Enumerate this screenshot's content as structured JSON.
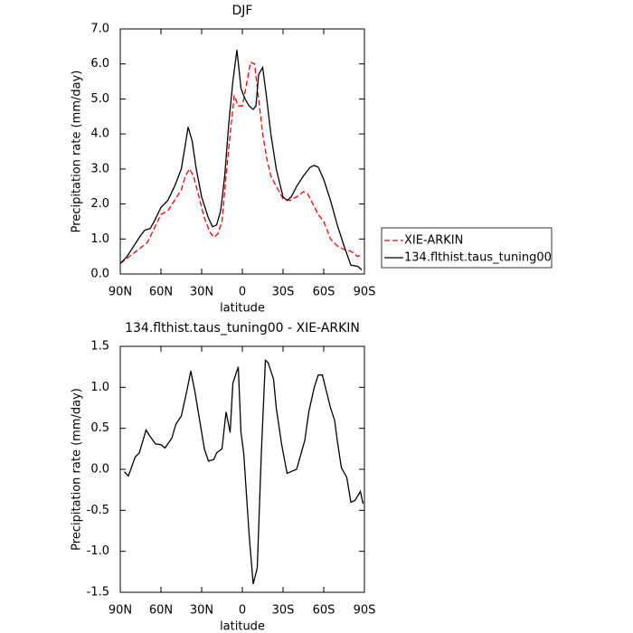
{
  "chart_data": [
    {
      "type": "line",
      "title": "DJF",
      "xlabel": "latitude",
      "ylabel": "Precipitation rate (mm/day)",
      "xlim": [
        90,
        -90
      ],
      "xticks": [
        {
          "value": 90,
          "label": "90N"
        },
        {
          "value": 60,
          "label": "60N"
        },
        {
          "value": 30,
          "label": "30N"
        },
        0,
        {
          "value": -30,
          "label": "30S"
        },
        {
          "value": -60,
          "label": "60S"
        },
        {
          "value": -90,
          "label": "90S"
        }
      ],
      "ylim": [
        0,
        7
      ],
      "yticks": [
        {
          "value": 0,
          "label": "0.0"
        },
        {
          "value": 1,
          "label": "1.0"
        },
        {
          "value": 2,
          "label": "2.0"
        },
        {
          "value": 3,
          "label": "3.0"
        },
        {
          "value": 4,
          "label": "4.0"
        },
        {
          "value": 5,
          "label": "5.0"
        },
        {
          "value": 6,
          "label": "6.0"
        },
        {
          "value": 7,
          "label": "7.0"
        }
      ],
      "legend": "right",
      "series": [
        {
          "name": "XIE-ARKIN",
          "color": "#ff0000",
          "linestyle": "dashed",
          "x": [
            90,
            85,
            80,
            75,
            70,
            65,
            60,
            55,
            50,
            45,
            42,
            39,
            36,
            32,
            28,
            24,
            21,
            18,
            15,
            12,
            9,
            6,
            3,
            0,
            -3,
            -6,
            -9,
            -12,
            -15,
            -18,
            -21,
            -25,
            -30,
            -35,
            -40,
            -45,
            -48,
            -52,
            -56,
            -60,
            -65,
            -70,
            -75,
            -80,
            -85,
            -88
          ],
          "values": [
            0.3,
            0.45,
            0.6,
            0.75,
            0.9,
            1.3,
            1.7,
            1.8,
            2.1,
            2.4,
            2.8,
            3.0,
            2.8,
            2.2,
            1.6,
            1.2,
            1.05,
            1.15,
            1.5,
            2.8,
            4.0,
            5.1,
            4.8,
            4.8,
            5.4,
            6.05,
            6.0,
            5.0,
            4.0,
            3.3,
            2.8,
            2.5,
            2.15,
            2.1,
            2.2,
            2.35,
            2.3,
            2.0,
            1.7,
            1.5,
            1.0,
            0.8,
            0.7,
            0.65,
            0.5,
            0.55
          ]
        },
        {
          "name": "134.flthist.taus_tuning00",
          "color": "#000000",
          "linestyle": "solid",
          "x": [
            90,
            85,
            80,
            75,
            72,
            68,
            65,
            60,
            55,
            50,
            45,
            42,
            40,
            37,
            34,
            30,
            25,
            22,
            19,
            16,
            13,
            10,
            7,
            4,
            1,
            -2,
            -5,
            -8,
            -10,
            -12,
            -15,
            -18,
            -21,
            -25,
            -30,
            -33,
            -36,
            -40,
            -45,
            -50,
            -53,
            -56,
            -60,
            -65,
            -70,
            -75,
            -80,
            -85,
            -88
          ],
          "values": [
            0.3,
            0.5,
            0.8,
            1.1,
            1.25,
            1.3,
            1.5,
            1.9,
            2.1,
            2.5,
            3.0,
            3.7,
            4.2,
            3.8,
            3.0,
            2.2,
            1.6,
            1.35,
            1.4,
            1.8,
            2.8,
            4.3,
            5.5,
            6.4,
            5.3,
            5.0,
            4.8,
            4.7,
            4.8,
            5.7,
            5.9,
            5.0,
            4.0,
            3.0,
            2.2,
            2.1,
            2.2,
            2.5,
            2.8,
            3.05,
            3.1,
            3.05,
            2.7,
            2.1,
            1.4,
            0.8,
            0.25,
            0.22,
            0.12
          ]
        }
      ]
    },
    {
      "type": "line",
      "title": "134.flthist.taus_tuning00 - XIE-ARKIN",
      "xlabel": "latitude",
      "ylabel": "Precipitation rate (mm/day)",
      "xlim": [
        90,
        -90
      ],
      "xticks": [
        {
          "value": 90,
          "label": "90N"
        },
        {
          "value": 60,
          "label": "60N"
        },
        {
          "value": 30,
          "label": "30N"
        },
        0,
        {
          "value": -30,
          "label": "30S"
        },
        {
          "value": -60,
          "label": "60S"
        },
        {
          "value": -90,
          "label": "90S"
        }
      ],
      "ylim": [
        -1.5,
        1.5
      ],
      "yticks": [
        -1.5,
        {
          "value": -1,
          "label": "-1.0"
        },
        -0.5,
        {
          "value": 0,
          "label": "0.0"
        },
        0.5,
        {
          "value": 1,
          "label": "1.0"
        },
        1.5
      ],
      "series": [
        {
          "color": "#000000",
          "linestyle": "solid",
          "x": [
            87,
            84,
            79,
            76,
            71,
            68,
            64,
            60,
            57,
            52,
            49,
            45,
            41,
            38,
            35,
            31,
            28,
            25,
            21,
            19,
            15,
            12,
            9,
            7,
            3,
            1,
            -1,
            -5,
            -8,
            -11,
            -14,
            -17,
            -19,
            -23,
            -25,
            -29,
            -33,
            -37,
            -40,
            -46,
            -49,
            -53,
            -56,
            -59,
            -62,
            -65,
            -68,
            -70,
            -73,
            -77,
            -80,
            -83,
            -87,
            -89
          ],
          "values": [
            -0.03,
            -0.08,
            0.15,
            0.2,
            0.48,
            0.4,
            0.31,
            0.3,
            0.26,
            0.38,
            0.55,
            0.65,
            0.95,
            1.2,
            0.95,
            0.55,
            0.25,
            0.1,
            0.12,
            0.2,
            0.25,
            0.7,
            0.45,
            1.05,
            1.25,
            0.45,
            0.2,
            -0.8,
            -1.4,
            -1.2,
            0.2,
            1.33,
            1.3,
            1.1,
            0.75,
            0.3,
            -0.05,
            -0.02,
            0.0,
            0.35,
            0.7,
            1.0,
            1.15,
            1.15,
            0.95,
            0.75,
            0.6,
            0.35,
            0.02,
            -0.1,
            -0.4,
            -0.38,
            -0.27,
            -0.42
          ]
        }
      ]
    }
  ]
}
